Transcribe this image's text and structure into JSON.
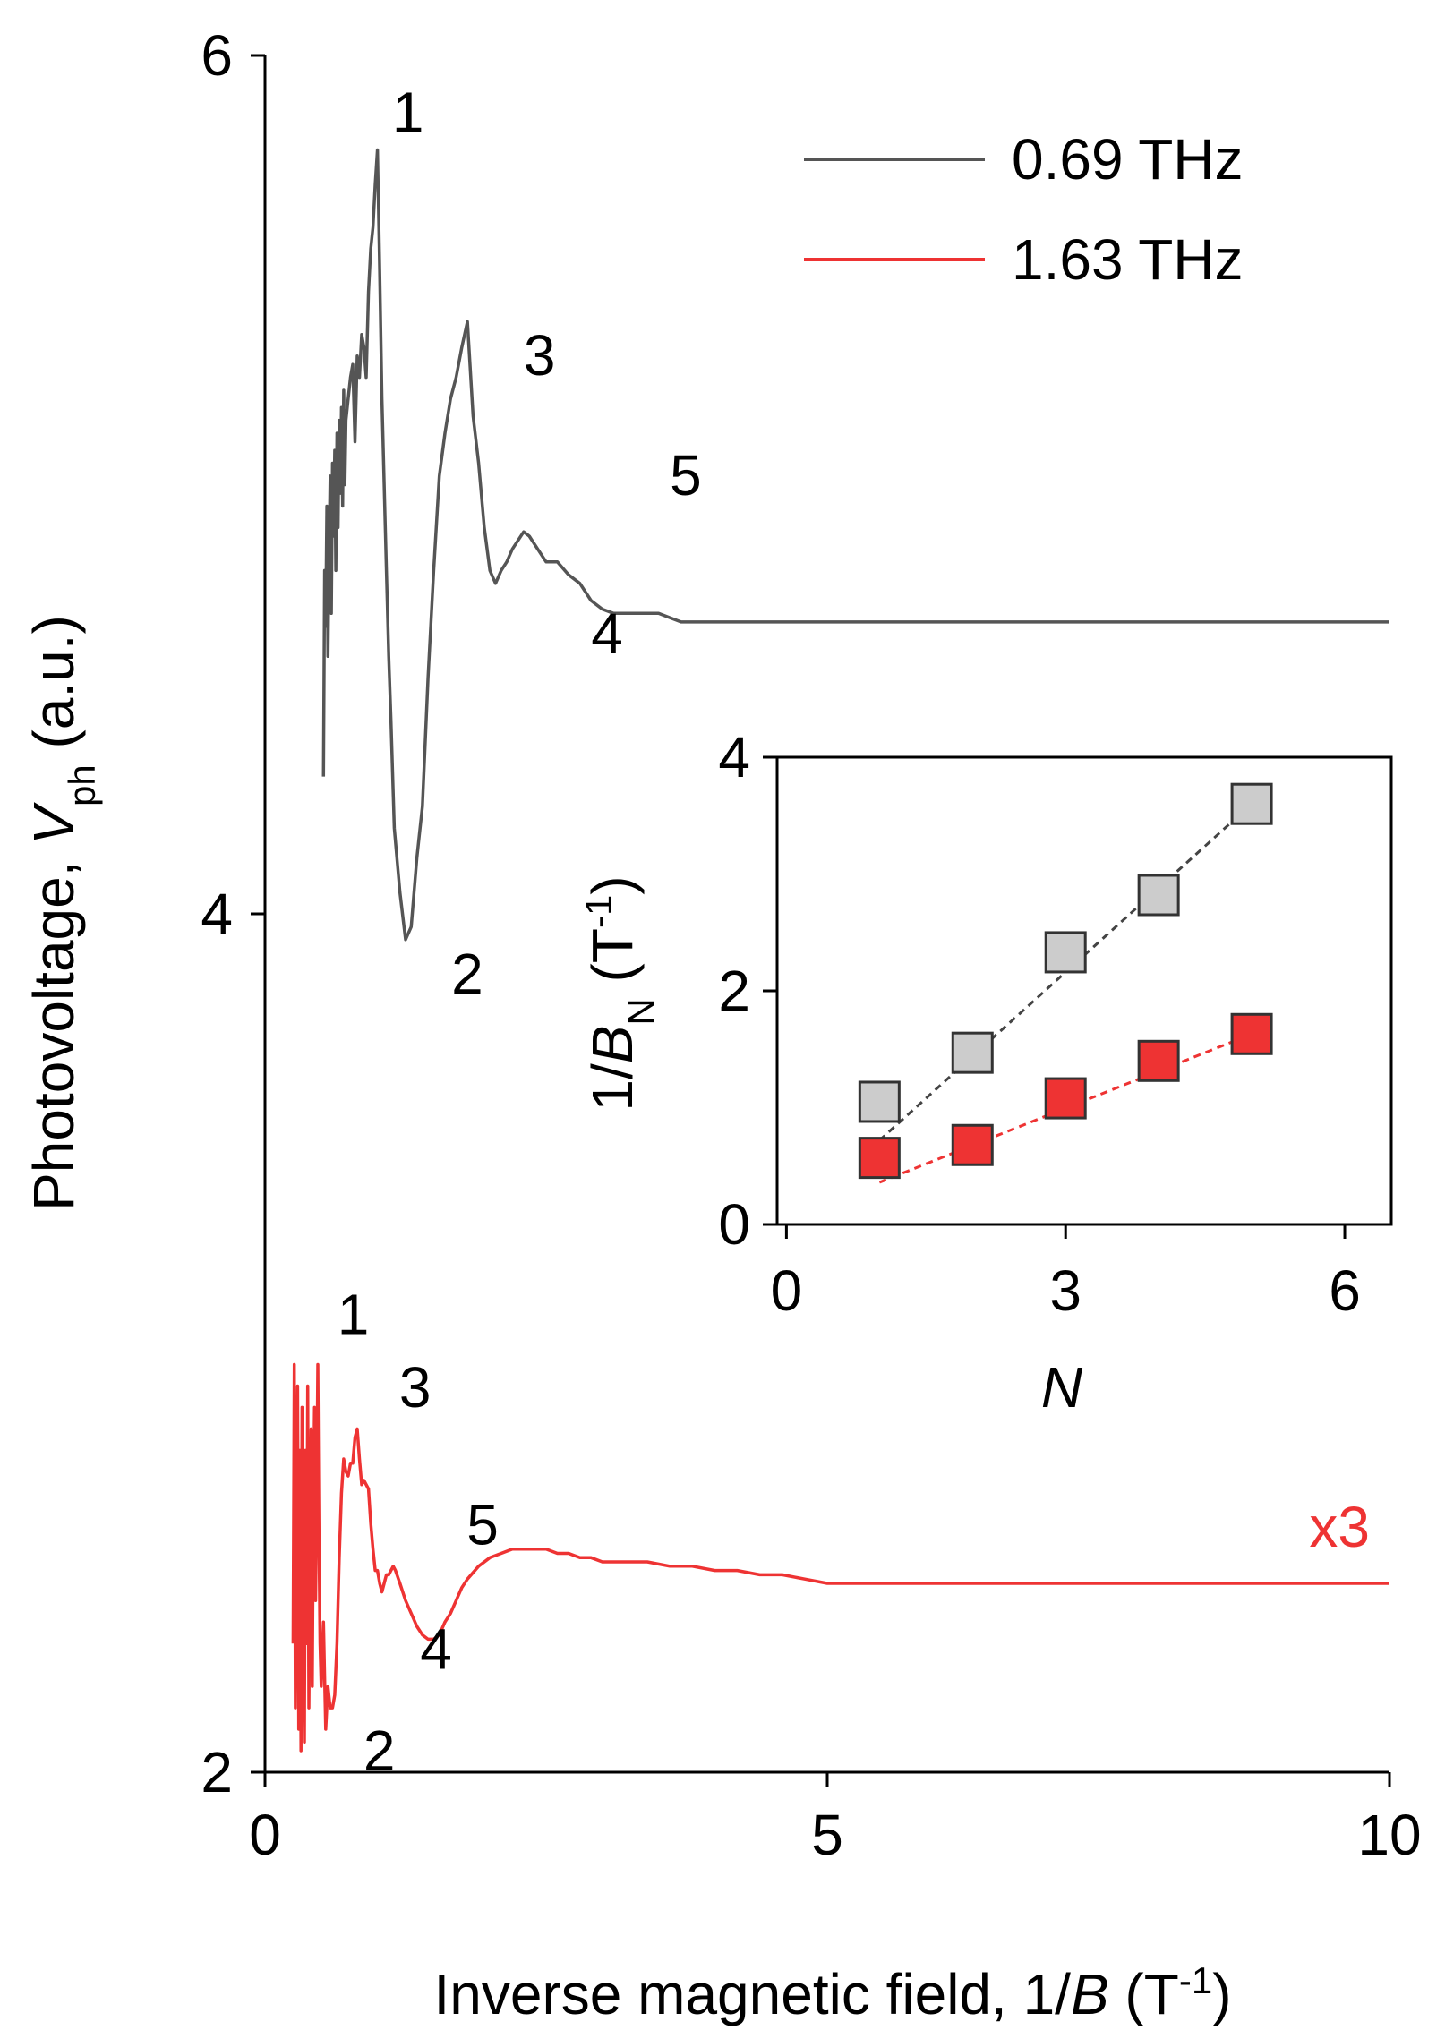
{
  "chart_data": [
    {
      "type": "line",
      "xlabel_prefix": "Inverse magnetic field, 1/",
      "xlabel_var": "B",
      "xlabel_unit_open": " (T",
      "xlabel_unit_sup": "-1",
      "xlabel_unit_close": ")",
      "ylabel_prefix": "Photovoltage, ",
      "ylabel_var": "V",
      "ylabel_sub": "ph",
      "ylabel_suffix": " (a.u.)",
      "xlim": [
        0,
        10
      ],
      "ylim": [
        2,
        6
      ],
      "xticks": [
        "0",
        "5",
        "10"
      ],
      "yticks": [
        "2",
        "4",
        "6"
      ],
      "legend": {
        "placement": "top-right",
        "entries": [
          "0.69 THz",
          "1.63 THz"
        ]
      },
      "scale_note": "x3",
      "series": [
        {
          "name": "0.69 THz",
          "color": "#555555",
          "x": [
            0.52,
            0.53,
            0.54,
            0.55,
            0.56,
            0.57,
            0.58,
            0.59,
            0.6,
            0.61,
            0.62,
            0.63,
            0.64,
            0.65,
            0.66,
            0.67,
            0.68,
            0.69,
            0.7,
            0.71,
            0.72,
            0.74,
            0.76,
            0.78,
            0.8,
            0.82,
            0.84,
            0.86,
            0.88,
            0.9,
            0.92,
            0.94,
            0.96,
            0.98,
            1.0,
            1.02,
            1.04,
            1.06,
            1.08,
            1.1,
            1.12,
            1.15,
            1.2,
            1.25,
            1.3,
            1.35,
            1.4,
            1.45,
            1.5,
            1.55,
            1.6,
            1.65,
            1.7,
            1.75,
            1.8,
            1.85,
            1.9,
            1.95,
            2.0,
            2.05,
            2.1,
            2.15,
            2.2,
            2.25,
            2.3,
            2.35,
            2.4,
            2.5,
            2.6,
            2.7,
            2.8,
            2.9,
            3.0,
            3.1,
            3.2,
            3.3,
            3.4,
            3.5,
            3.6,
            3.7,
            3.8,
            3.9,
            4.0,
            4.2,
            4.4,
            4.6,
            4.8,
            5.0,
            5.2,
            5.4,
            5.6,
            6.0,
            6.5,
            7.0,
            7.5,
            8.0,
            8.5,
            9.0,
            9.5,
            10.0
          ],
          "y": [
            4.32,
            4.8,
            4.67,
            4.95,
            4.6,
            4.85,
            5.02,
            4.7,
            5.05,
            4.88,
            5.08,
            4.8,
            5.12,
            4.9,
            5.15,
            4.98,
            5.18,
            4.95,
            5.22,
            5.0,
            5.15,
            5.2,
            5.25,
            5.28,
            5.1,
            5.3,
            5.25,
            5.35,
            5.32,
            5.25,
            5.45,
            5.55,
            5.6,
            5.7,
            5.78,
            5.5,
            5.2,
            5.0,
            4.8,
            4.6,
            4.45,
            4.2,
            4.05,
            3.94,
            3.97,
            4.13,
            4.25,
            4.55,
            4.8,
            5.02,
            5.12,
            5.2,
            5.25,
            5.32,
            5.38,
            5.16,
            5.05,
            4.9,
            4.8,
            4.77,
            4.8,
            4.82,
            4.85,
            4.87,
            4.89,
            4.88,
            4.86,
            4.82,
            4.82,
            4.79,
            4.77,
            4.73,
            4.71,
            4.7,
            4.7,
            4.7,
            4.7,
            4.7,
            4.69,
            4.68,
            4.68,
            4.68,
            4.68,
            4.68,
            4.68,
            4.68,
            4.68,
            4.68,
            4.68,
            4.68,
            4.68,
            4.68,
            4.68,
            4.68,
            4.68,
            4.68,
            4.68,
            4.68,
            4.68,
            4.68
          ]
        },
        {
          "name": "1.63 THz",
          "color": "#ee3333",
          "x": [
            0.25,
            0.26,
            0.27,
            0.28,
            0.29,
            0.3,
            0.31,
            0.32,
            0.33,
            0.34,
            0.35,
            0.36,
            0.37,
            0.38,
            0.39,
            0.4,
            0.41,
            0.42,
            0.43,
            0.44,
            0.45,
            0.46,
            0.47,
            0.48,
            0.49,
            0.5,
            0.52,
            0.54,
            0.56,
            0.58,
            0.6,
            0.62,
            0.64,
            0.66,
            0.68,
            0.7,
            0.72,
            0.74,
            0.76,
            0.78,
            0.8,
            0.82,
            0.84,
            0.86,
            0.88,
            0.9,
            0.92,
            0.94,
            0.96,
            0.98,
            1.0,
            1.02,
            1.04,
            1.06,
            1.08,
            1.1,
            1.12,
            1.14,
            1.16,
            1.2,
            1.25,
            1.3,
            1.35,
            1.4,
            1.45,
            1.5,
            1.55,
            1.6,
            1.65,
            1.7,
            1.75,
            1.8,
            1.9,
            2.0,
            2.1,
            2.2,
            2.3,
            2.4,
            2.5,
            2.6,
            2.7,
            2.8,
            2.9,
            3.0,
            3.2,
            3.4,
            3.6,
            3.8,
            4.0,
            4.2,
            4.4,
            4.6,
            4.8,
            5.0,
            5.5,
            6.0,
            6.5,
            7.0,
            7.5,
            8.0,
            8.5,
            9.0,
            9.5,
            10.0
          ],
          "y": [
            2.3,
            2.95,
            2.15,
            2.6,
            2.9,
            2.1,
            2.75,
            2.05,
            2.85,
            2.4,
            2.07,
            2.75,
            2.3,
            2.9,
            2.15,
            2.5,
            2.8,
            2.2,
            2.6,
            2.85,
            2.4,
            2.65,
            2.95,
            2.55,
            2.3,
            2.2,
            2.35,
            2.1,
            2.2,
            2.15,
            2.15,
            2.18,
            2.3,
            2.5,
            2.65,
            2.73,
            2.7,
            2.69,
            2.72,
            2.72,
            2.78,
            2.8,
            2.73,
            2.67,
            2.68,
            2.67,
            2.66,
            2.58,
            2.52,
            2.47,
            2.47,
            2.44,
            2.42,
            2.44,
            2.46,
            2.46,
            2.47,
            2.48,
            2.47,
            2.44,
            2.4,
            2.37,
            2.34,
            2.32,
            2.31,
            2.31,
            2.32,
            2.35,
            2.37,
            2.4,
            2.43,
            2.45,
            2.48,
            2.5,
            2.51,
            2.52,
            2.52,
            2.52,
            2.52,
            2.51,
            2.51,
            2.5,
            2.5,
            2.49,
            2.49,
            2.49,
            2.48,
            2.48,
            2.47,
            2.47,
            2.46,
            2.46,
            2.45,
            2.44,
            2.44,
            2.44,
            2.44,
            2.44,
            2.44,
            2.44,
            2.44,
            2.44,
            2.44,
            2.44
          ]
        }
      ],
      "annotations": [
        {
          "series": "0.69 THz",
          "label": "1",
          "x": 1.05,
          "y": 5.78
        },
        {
          "series": "0.69 THz",
          "label": "2",
          "x": 1.45,
          "y": 3.94
        },
        {
          "series": "0.69 THz",
          "label": "3",
          "x": 2.3,
          "y": 5.16
        },
        {
          "series": "0.69 THz",
          "label": "4",
          "x": 2.9,
          "y": 4.77
        },
        {
          "series": "0.69 THz",
          "label": "5",
          "x": 3.6,
          "y": 4.88
        },
        {
          "series": "1.63 THz",
          "label": "1",
          "x": 0.5,
          "y": 2.95
        },
        {
          "series": "1.63 THz",
          "label": "2",
          "x": 0.7,
          "y": 2.15
        },
        {
          "series": "1.63 THz",
          "label": "3",
          "x": 1.05,
          "y": 2.78
        },
        {
          "series": "1.63 THz",
          "label": "4",
          "x": 1.3,
          "y": 2.42
        },
        {
          "series": "1.63 THz",
          "label": "5",
          "x": 1.65,
          "y": 2.46
        }
      ]
    },
    {
      "type": "scatter",
      "xlabel": "N",
      "ylabel_prefix": "1/",
      "ylabel_var": "B",
      "ylabel_sub": "N",
      "ylabel_unit_open": " (T",
      "ylabel_unit_sup": "-1",
      "ylabel_unit_close": ")",
      "xlim": [
        -0.1,
        6.5
      ],
      "ylim": [
        0,
        4
      ],
      "xticks": [
        "0",
        "3",
        "6"
      ],
      "yticks": [
        "0",
        "2",
        "4"
      ],
      "series": [
        {
          "name": "0.69 THz",
          "fill": "#cccccc",
          "line_color": "#444444",
          "x": [
            1,
            2,
            3,
            4,
            5
          ],
          "y": [
            1.05,
            1.47,
            2.33,
            2.82,
            3.6
          ]
        },
        {
          "name": "1.63 THz",
          "fill": "#ee3333",
          "line_color": "#ee3333",
          "x": [
            1,
            2,
            3,
            4,
            5
          ],
          "y": [
            0.57,
            0.68,
            1.08,
            1.4,
            1.63
          ]
        }
      ],
      "fits": [
        {
          "series": "0.69 THz",
          "x": [
            1,
            5
          ],
          "y": [
            0.72,
            3.6
          ]
        },
        {
          "series": "1.63 THz",
          "x": [
            1,
            5
          ],
          "y": [
            0.36,
            1.63
          ]
        }
      ]
    }
  ]
}
